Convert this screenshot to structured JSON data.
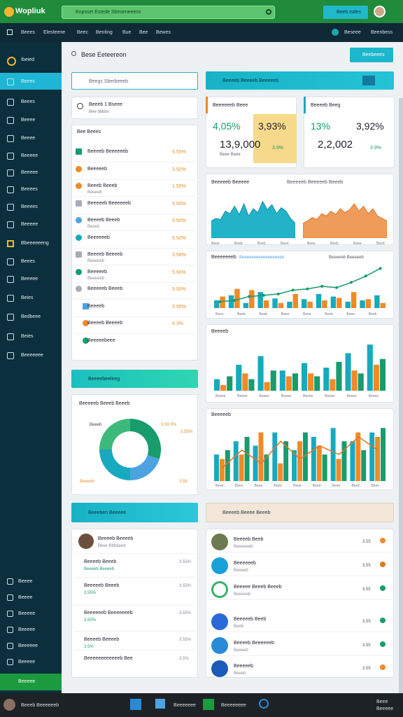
{
  "header": {
    "logo": "Wopliuk",
    "search": "Enpsset Estede Sbeseneeess",
    "button": "Beeb tsdes"
  },
  "nav": {
    "items": [
      "Beees",
      "Elesteene",
      "Beec",
      "Benting",
      "Bue",
      "Bee",
      "Bewes"
    ],
    "right": [
      "Beseee",
      "Beenbess"
    ]
  },
  "sidebar": {
    "items": [
      "Ibeied",
      "Beees",
      "Beees",
      "Beeee",
      "Beeee",
      "Beeeee",
      "Beeeee",
      "Beeees",
      "Beeees",
      "Beeeee",
      "Bbeeeeeeng",
      "Beees",
      "Beeeee",
      "Beies",
      "Bedbeee",
      "Beies",
      "Beeeeeee"
    ],
    "bottom": [
      "Beeee",
      "Beeee",
      "Beeeee",
      "Beeeee",
      "Beeeeee",
      "Beeeee"
    ],
    "button": "Beeeee"
  },
  "page": {
    "title": "Bese Eeteereon",
    "action": "Beebeees"
  },
  "left": {
    "search": "Beegs Sberbeeeb",
    "user": {
      "name": "Beeeb 1 Bseee",
      "sub": "Bee bbbbs"
    },
    "list_title": "Bee Beees",
    "rows": [
      {
        "name": "Beeeeb Beeeeeeb",
        "value": "5.55%"
      },
      {
        "name": "Beeeeeb",
        "value": "3.50%"
      },
      {
        "name": "Beeeb Beeeb",
        "sub": "Beeeeb",
        "value": "1.55%"
      },
      {
        "name": "Beeeeeb Beeeeeeb",
        "value": "5.50%"
      },
      {
        "name": "Beeeeb Beeeb",
        "sub": "Beeeb",
        "value": "5.50%"
      },
      {
        "name": "Beeeeeeb",
        "value": "5.50%"
      },
      {
        "name": "Beeeeb Beeeeb",
        "sub": "Beeeeeb",
        "value": "3.58%"
      },
      {
        "name": "Beeeeeb",
        "sub": "Beeeeeb",
        "value": "5.50%"
      },
      {
        "name": "Beeeeeb Beeeb",
        "value": "5.50%"
      },
      {
        "name": "Beeeeb",
        "value": "3.55%"
      },
      {
        "name": "Beeeeb Beeeeb",
        "value": "4.3%"
      },
      {
        "name": "Beeeeebeee"
      }
    ],
    "bar1": "Beeeebeeleeg",
    "donut_title": "Beeeeeb Beeeb Beeeb",
    "donut_labels": [
      "Beeeb",
      "3.55%",
      "3.59 3%",
      "Beeeeb",
      "3.56"
    ],
    "bar2": "Beeeben Beeeee",
    "user2": {
      "name": "Beeeeb Beeeeb",
      "sub": "Bbee Bbbbeeb"
    },
    "rows2": [
      {
        "name": "Beeeeb Beeeb",
        "sub": "Beeeeb Beeeeb",
        "value": "3.55%"
      },
      {
        "name": "Beeeeeb Beeeb",
        "sub": "3.55%",
        "value": "3.55%"
      },
      {
        "name": "Beeeeeeb Beeeeeeeb",
        "sub": "3.55%",
        "value": "3.55%"
      },
      {
        "name": "Beeeeb Beeeeb",
        "sub": "3.5%",
        "value": "3.55%"
      },
      {
        "name": "Beeeeeeeeeeeeb Bee",
        "value": "3.5%"
      }
    ]
  },
  "right": {
    "header": "Beeeeb Beeeeb Beeeeeb",
    "card1": {
      "title": "Beeeeeeb Beee",
      "a": "4,05%",
      "b": "3,93%",
      "total": "13,9,000",
      "delta": "3.9%",
      "sub": "Beee Beee"
    },
    "card2": {
      "title": "Beeeeb Beeg",
      "a": "13%",
      "b": "3,92%",
      "total": "2,2,002",
      "delta": "3.9%"
    },
    "area_title": "Beeeeeb Beeeee",
    "area_legend": "Beeeeeb Beeeeeb Beeeb",
    "area_labels": [
      "Beee",
      "Beeb",
      "Beeb",
      "Beee",
      "Beee",
      "Beeb",
      "Beee",
      "Beeb"
    ],
    "combo_title": "Beeeeeeeb",
    "combo_legend": "Beeeeeeeeeeeeeeeeeb",
    "combo_legend2": "Beeeeeb Beeeeeb",
    "combo_labels": [
      "Beee",
      "Beeb",
      "Beeb",
      "Beee",
      "Beee",
      "Beeb",
      "Beee",
      "Beeb"
    ],
    "bar3_title": "Beeeeb",
    "bar3_labels": [
      "Beeee",
      "Beeee",
      "Beeee",
      "Beeee",
      "Beeee",
      "Beeee",
      "Beeee",
      "Beeee"
    ],
    "bar4_title": "Beeeeeb",
    "bar4_labels": [
      "Beee",
      "Beee",
      "Beee",
      "Beee",
      "Beee",
      "Beee",
      "Beee",
      "Beee",
      "Beee"
    ],
    "panel_title": "Beeeeb Beeee Beeeb",
    "rows": [
      {
        "name": "Beeeeb Beeb",
        "sub": "Beeeeeeb",
        "value": "3.55"
      },
      {
        "name": "Beeeeeeb",
        "sub": "Beeeeb",
        "value": "3.55"
      },
      {
        "name": "Beeeee Beeeb Beeeb",
        "sub": "Beeeeeb",
        "value": "3.55"
      },
      {
        "name": "Beeeeeb Beeb",
        "sub": "Beeb",
        "value": "3.55"
      },
      {
        "name": "Beeeeb Beeeeeeb",
        "sub": "Beeeeb",
        "value": "3.55"
      },
      {
        "name": "Beeeeeb",
        "sub": "Beeeb",
        "value": "3.55"
      }
    ]
  },
  "charts": {
    "area1": [
      35,
      40,
      38,
      55,
      50,
      65,
      48,
      70,
      45,
      60,
      52,
      75,
      58,
      68,
      50,
      62,
      55,
      40,
      30
    ],
    "area2": [
      30,
      35,
      42,
      38,
      50,
      45,
      55,
      48,
      60,
      52,
      58,
      70,
      55,
      65,
      50,
      60,
      45,
      40,
      35
    ],
    "combo": {
      "teal": [
        12,
        20,
        8,
        25,
        15,
        10,
        14,
        22,
        18,
        10,
        12,
        20
      ],
      "orange": [
        18,
        30,
        28,
        12,
        8,
        22,
        10,
        12,
        16,
        25,
        14,
        8
      ],
      "line": [
        10,
        12,
        18,
        20,
        22,
        28,
        30,
        34,
        32,
        40,
        50,
        62
      ]
    },
    "bar3": {
      "teal": [
        20,
        45,
        60,
        35,
        48,
        40,
        65,
        80
      ],
      "orange": [
        10,
        30,
        15,
        25,
        30,
        20,
        35,
        45
      ],
      "green": [
        25,
        20,
        35,
        30,
        25,
        50,
        30,
        55
      ]
    },
    "bar4": {
      "teal": [
        30,
        45,
        40,
        55,
        35,
        50,
        60,
        45,
        55
      ],
      "orange": [
        25,
        30,
        55,
        20,
        45,
        40,
        25,
        55,
        50
      ],
      "green": [
        35,
        50,
        30,
        45,
        55,
        30,
        45,
        35,
        60
      ],
      "line": [
        15,
        35,
        20,
        45,
        25,
        40,
        30,
        50,
        35
      ]
    },
    "donut": [
      30,
      20,
      25,
      25
    ]
  },
  "taskbar": {
    "user": "Beeeb Beeeeeeb",
    "apps": [
      "Beeeeeee",
      "Beeeeeeee"
    ],
    "right": "Beee Beeeee"
  }
}
